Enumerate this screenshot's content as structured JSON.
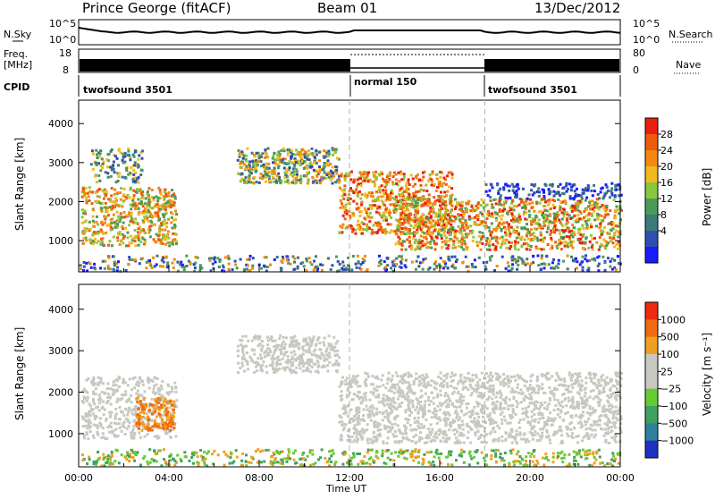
{
  "header": {
    "title": "Prince George (fitACF)",
    "beam": "Beam 01",
    "date": "13/Dec/2012"
  },
  "status_panels": {
    "noise_label": "N.Sky",
    "noise_left_ticks": [
      "10^5",
      "10^0"
    ],
    "noise_right_label": "N.Search",
    "noise_right_ticks": [
      "10^5",
      "10^0"
    ],
    "freq_label": "Freq.",
    "freq_unit": "[MHz]",
    "freq_ticks": [
      "18",
      "8"
    ],
    "nave_label": "Nave",
    "nave_ticks": [
      "80",
      "0"
    ],
    "cpid_label": "CPID",
    "cpid_segments": [
      {
        "name": "twofsound 3501",
        "start_hour": 0,
        "end_hour": 12
      },
      {
        "name": "normal 150",
        "start_hour": 12,
        "end_hour": 18
      },
      {
        "name": "twofsound 3501",
        "start_hour": 18,
        "end_hour": 24
      }
    ]
  },
  "chart_data": [
    {
      "type": "heatmap",
      "title": "Power",
      "ylabel": "Slant Range [km]",
      "ylim": [
        200,
        4600
      ],
      "yticks": [
        1000,
        2000,
        3000,
        4000
      ],
      "xlim": [
        0,
        24
      ],
      "colorbar": {
        "label": "Power [dB]",
        "range": [
          0,
          32
        ],
        "ticks": [
          "4",
          "8",
          "12",
          "16",
          "20",
          "24",
          "28"
        ],
        "colors": [
          "#1a1aff",
          "#2f4fb0",
          "#3c7a7a",
          "#4a9b5a",
          "#8cc63f",
          "#f2b820",
          "#f28a10",
          "#ee5a10",
          "#e82010"
        ]
      }
    },
    {
      "type": "heatmap",
      "title": "Velocity",
      "ylabel": "Slant Range [km]",
      "ylim": [
        200,
        4600
      ],
      "yticks": [
        1000,
        2000,
        3000,
        4000
      ],
      "xlim": [
        0,
        24
      ],
      "colorbar": {
        "label": "Velocity [m s⁻¹]",
        "ticks": [
          "1000",
          "500",
          "100",
          "25",
          "−25",
          "−100",
          "−500",
          "−1000"
        ],
        "colors": [
          "#2030c0",
          "#2f7fa0",
          "#3fa060",
          "#66cc33",
          "#c8c8c0",
          "#c8c8c0",
          "#f0a020",
          "#f06a10",
          "#ee2a10"
        ]
      }
    }
  ],
  "xaxis": {
    "label": "Time UT",
    "ticks": [
      "00:00",
      "04:00",
      "08:00",
      "12:00",
      "16:00",
      "20:00",
      "00:00"
    ]
  }
}
